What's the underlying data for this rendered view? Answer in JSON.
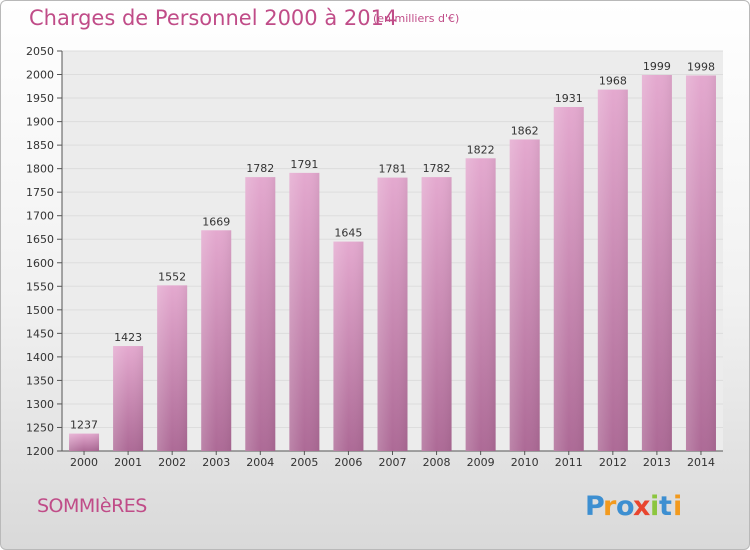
{
  "header": {
    "title": "Charges de Personnel 2000 à 2014",
    "subtitle": "(en milliers d'€)"
  },
  "footer": {
    "commune": "SOMMIèRES",
    "logo_text": "Proxiti"
  },
  "colors": {
    "bar_top": "#e4a9cf",
    "bar_bottom": "#ad6a96",
    "title": "#c04c88",
    "grid": "#dddddd"
  },
  "chart_data": {
    "type": "bar",
    "title": "Charges de Personnel 2000 à 2014",
    "subtitle": "(en milliers d'€)",
    "categories": [
      "2000",
      "2001",
      "2002",
      "2003",
      "2004",
      "2005",
      "2006",
      "2007",
      "2008",
      "2009",
      "2010",
      "2011",
      "2012",
      "2013",
      "2014"
    ],
    "values": [
      1237,
      1423,
      1552,
      1669,
      1782,
      1791,
      1645,
      1781,
      1782,
      1822,
      1862,
      1931,
      1968,
      1999,
      1998
    ],
    "ylim": [
      1200,
      2050
    ],
    "yticks": [
      1200,
      1250,
      1300,
      1350,
      1400,
      1450,
      1500,
      1550,
      1600,
      1650,
      1700,
      1750,
      1800,
      1850,
      1900,
      1950,
      2000,
      2050
    ],
    "grid": true,
    "xlabel": "",
    "ylabel": ""
  }
}
